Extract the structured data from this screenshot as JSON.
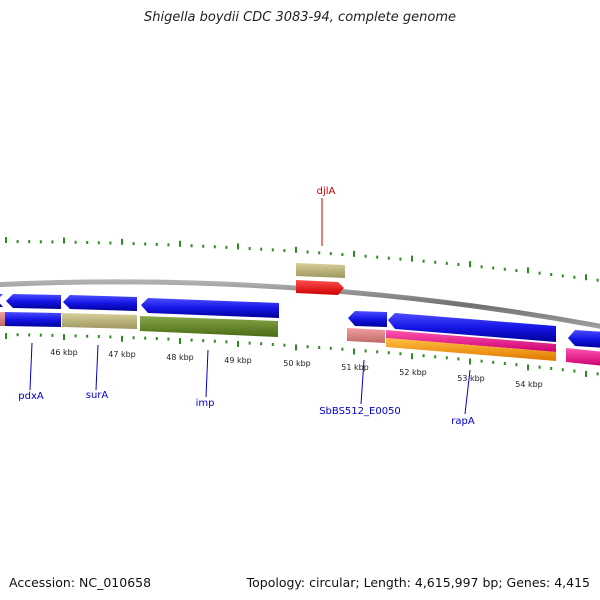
{
  "title": "Shigella boydii CDC 3083-94, complete genome",
  "accession": "Accession: NC_010658",
  "topology": "Topology: circular; Length: 4,615,997 bp; Genes: 4,415",
  "scale_labels": [
    "46 kbp",
    "47 kbp",
    "48 kbp",
    "49 kbp",
    "50 kbp",
    "51 kbp",
    "52 kbp",
    "53 kbp",
    "54 kbp"
  ],
  "genes": [
    {
      "name": "pdxA",
      "color": "#0000cc"
    },
    {
      "name": "surA",
      "color": "#0000cc"
    },
    {
      "name": "imp",
      "color": "#0000cc"
    },
    {
      "name": "djlA",
      "color": "#cc0000"
    },
    {
      "name": "SbBS512_E0050",
      "color": "#0000cc"
    },
    {
      "name": "rapA",
      "color": "#0000cc"
    }
  ],
  "colors": {
    "backbone": "#888888",
    "cds_blue": "#1a1aee",
    "tan": "#bdb57a",
    "olive": "#6b8e23",
    "red": "#ff0000",
    "salmon": "#e08a8a",
    "magenta": "#ff1493",
    "orange": "#ff9a00",
    "tick": "#2e8b22"
  }
}
